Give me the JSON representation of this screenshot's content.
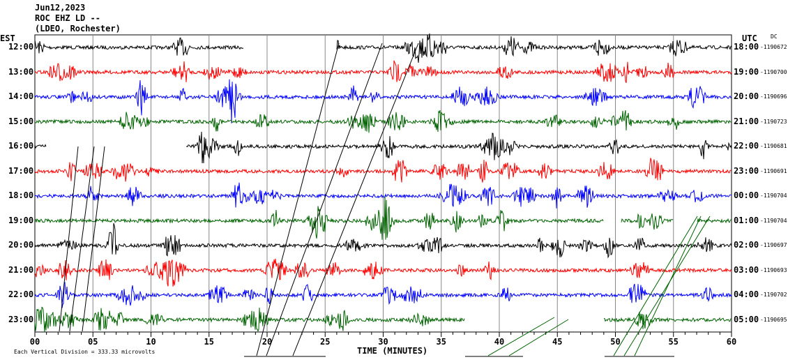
{
  "header": {
    "date": "Jun12,2023",
    "station": "ROC EHZ LD --",
    "network": "(LDEO, Rochester)"
  },
  "left_axis_title": "EST",
  "right_axis_title": "UTC",
  "dc_title": "DC",
  "footer_note": "Each Vertical Division =  333.33 microvolts",
  "chart_data": {
    "type": "line",
    "xlabel": "TIME (MINUTES)",
    "xlim": [
      0,
      60
    ],
    "x_ticks": [
      "00",
      "05",
      "10",
      "15",
      "20",
      "25",
      "30",
      "35",
      "40",
      "45",
      "50",
      "55",
      "60"
    ],
    "grid": true,
    "traces": [
      {
        "est": "12:00",
        "utc": "18:00",
        "dc": "-1190672",
        "color": "#000000",
        "gaps": [
          [
            18,
            26
          ]
        ]
      },
      {
        "est": "13:00",
        "utc": "19:00",
        "dc": "-1190700",
        "color": "#ff0000",
        "gaps": []
      },
      {
        "est": "14:00",
        "utc": "20:00",
        "dc": "-1190696",
        "color": "#0000ff",
        "gaps": []
      },
      {
        "est": "15:00",
        "utc": "21:00",
        "dc": "-1190723",
        "color": "#006400",
        "gaps": []
      },
      {
        "est": "16:00",
        "utc": "22:00",
        "dc": "-1190681",
        "color": "#000000",
        "gaps": [
          [
            1,
            13
          ]
        ]
      },
      {
        "est": "17:00",
        "utc": "23:00",
        "dc": "-1190691",
        "color": "#ff0000",
        "gaps": []
      },
      {
        "est": "18:00",
        "utc": "00:00",
        "dc": "-1190704",
        "color": "#0000ff",
        "gaps": []
      },
      {
        "est": "19:00",
        "utc": "01:00",
        "dc": "-1190704",
        "color": "#006400",
        "gaps": [
          [
            49,
            50.5
          ],
          [
            55,
            57
          ]
        ]
      },
      {
        "est": "20:00",
        "utc": "02:00",
        "dc": "-1190697",
        "color": "#000000",
        "gaps": []
      },
      {
        "est": "21:00",
        "utc": "03:00",
        "dc": "-1190693",
        "color": "#ff0000",
        "gaps": []
      },
      {
        "est": "22:00",
        "utc": "04:00",
        "dc": "-1190702",
        "color": "#0000ff",
        "gaps": []
      },
      {
        "est": "23:00",
        "utc": "05:00",
        "dc": "-1190695",
        "color": "#006400",
        "gaps": [
          [
            37,
            49
          ]
        ]
      }
    ]
  }
}
